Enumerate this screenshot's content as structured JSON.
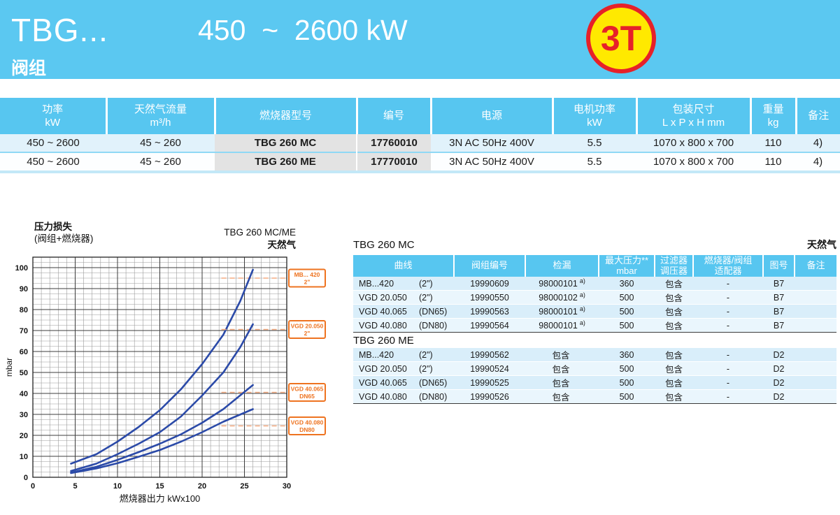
{
  "header": {
    "model": "TBG...",
    "subtitle": "阀组",
    "power_range": "450  ~  2600 kW",
    "badge": "3T"
  },
  "colors": {
    "banner_blue": "#5bc8f1",
    "table_header_blue": "#57c6f0",
    "row_blue": "#d9eefa",
    "gray_cell": "#e3e3e3",
    "badge_yellow": "#ffe900",
    "badge_red": "#e62129",
    "curve_blue": "#2b4aa8",
    "label_orange": "#ee7320"
  },
  "main_table": {
    "headers": [
      {
        "line1": "功率",
        "line2": "kW"
      },
      {
        "line1": "天然气流量",
        "line2": "m³/h"
      },
      {
        "line1": "燃烧器型号",
        "line2": ""
      },
      {
        "line1": "编号",
        "line2": ""
      },
      {
        "line1": "电源",
        "line2": ""
      },
      {
        "line1": "电机功率",
        "line2": "kW"
      },
      {
        "line1": "包装尺寸",
        "line2": "L x P x H  mm"
      },
      {
        "line1": "重量",
        "line2": "kg"
      },
      {
        "line1": "备注",
        "line2": ""
      }
    ],
    "rows": [
      [
        "450 ~ 2600",
        "45 ~ 260",
        "TBG 260 MC",
        "17760010",
        "3N AC 50Hz 400V",
        "5.5",
        "1070 x 800 x 700",
        "110",
        "4)"
      ],
      [
        "450 ~ 2600",
        "45 ~ 260",
        "TBG 260 ME",
        "17770010",
        "3N AC 50Hz 400V",
        "5.5",
        "1070 x 800 x 700",
        "110",
        "4)"
      ]
    ]
  },
  "chart_data": {
    "type": "line",
    "title_left_1": "压力损失",
    "title_left_2": "(阀组+燃烧器)",
    "title_right_1": "TBG 260 MC/ME",
    "title_right_2": "天然气",
    "xlabel": "燃烧器出力 kWx100",
    "ylabel": "mbar",
    "xlim": [
      0,
      30
    ],
    "ylim": [
      0,
      105
    ],
    "x_major_ticks": [
      0,
      5,
      10,
      15,
      20,
      25,
      30
    ],
    "y_major_ticks": [
      0,
      10,
      20,
      30,
      40,
      50,
      60,
      70,
      80,
      90,
      100
    ],
    "x_minor_step": 1,
    "y_minor_step": 2.5,
    "x_major_step": 5,
    "y_major_step": 10,
    "grid": true,
    "legend_position": "right-boxes",
    "series": [
      {
        "name": "MB... 420",
        "size": "2\"",
        "label_y": 95,
        "points": [
          [
            4.5,
            6.5
          ],
          [
            7.5,
            11
          ],
          [
            10,
            17
          ],
          [
            12.5,
            24
          ],
          [
            15,
            32
          ],
          [
            17.5,
            42
          ],
          [
            20,
            54
          ],
          [
            22.5,
            68
          ],
          [
            24.5,
            84
          ],
          [
            26,
            99
          ]
        ]
      },
      {
        "name": "VGD 20.050",
        "size": "2\"",
        "label_y": 70.5,
        "points": [
          [
            4.5,
            3
          ],
          [
            7.5,
            6.5
          ],
          [
            10,
            11
          ],
          [
            12.5,
            16
          ],
          [
            15,
            21.5
          ],
          [
            17.5,
            29
          ],
          [
            20,
            39
          ],
          [
            22.5,
            50
          ],
          [
            24.5,
            62
          ],
          [
            26,
            73
          ]
        ]
      },
      {
        "name": "VGD 40.065",
        "size": "DN65",
        "label_y": 40.5,
        "points": [
          [
            4.5,
            2.2
          ],
          [
            7.5,
            5
          ],
          [
            10,
            8.3
          ],
          [
            12.5,
            12
          ],
          [
            15,
            16
          ],
          [
            17.5,
            20.5
          ],
          [
            20,
            26
          ],
          [
            22.5,
            32.5
          ],
          [
            26,
            44
          ]
        ]
      },
      {
        "name": "VGD 40.080",
        "size": "DN80",
        "label_y": 24.5,
        "points": [
          [
            4.5,
            2
          ],
          [
            7.5,
            4.2
          ],
          [
            10,
            6.7
          ],
          [
            12.5,
            9.8
          ],
          [
            15,
            13
          ],
          [
            17.5,
            17
          ],
          [
            20,
            21.5
          ],
          [
            22.5,
            26.5
          ],
          [
            26,
            32.5
          ]
        ]
      }
    ]
  },
  "valve_table": {
    "title_mc": "TBG 260 MC",
    "gas_label": "天然气",
    "title_me": "TBG 260 ME",
    "headers": [
      {
        "line1": "曲线",
        "line2": ""
      },
      {
        "line1": "阀组编号",
        "line2": ""
      },
      {
        "line1": "检漏",
        "line2": ""
      },
      {
        "line1": "最大压力**",
        "line2": "mbar"
      },
      {
        "line1": "过滤器",
        "line2": "调压器"
      },
      {
        "line1": "燃烧器/阀组",
        "line2": "适配器"
      },
      {
        "line1": "图号",
        "line2": ""
      },
      {
        "line1": "备注",
        "line2": ""
      }
    ],
    "mc_rows": [
      {
        "curve": "MB...420",
        "size": "(2\")",
        "part": "19990609",
        "leak": "98000101",
        "leak_note": "a)",
        "pressure": "360",
        "filter": "包含",
        "adapter": "-",
        "figure": "B7",
        "remark": ""
      },
      {
        "curve": "VGD 20.050",
        "size": "(2\")",
        "part": "19990550",
        "leak": "98000102",
        "leak_note": "a)",
        "pressure": "500",
        "filter": "包含",
        "adapter": "-",
        "figure": "B7",
        "remark": ""
      },
      {
        "curve": "VGD 40.065",
        "size": "(DN65)",
        "part": "19990563",
        "leak": "98000101",
        "leak_note": "a)",
        "pressure": "500",
        "filter": "包含",
        "adapter": "-",
        "figure": "B7",
        "remark": ""
      },
      {
        "curve": "VGD 40.080",
        "size": "(DN80)",
        "part": "19990564",
        "leak": "98000101",
        "leak_note": "a)",
        "pressure": "500",
        "filter": "包含",
        "adapter": "-",
        "figure": "B7",
        "remark": ""
      }
    ],
    "me_rows": [
      {
        "curve": "MB...420",
        "size": "(2\")",
        "part": "19990562",
        "leak": "包含",
        "leak_note": "",
        "pressure": "360",
        "filter": "包含",
        "adapter": "-",
        "figure": "D2",
        "remark": ""
      },
      {
        "curve": "VGD 20.050",
        "size": "(2\")",
        "part": "19990524",
        "leak": "包含",
        "leak_note": "",
        "pressure": "500",
        "filter": "包含",
        "adapter": "-",
        "figure": "D2",
        "remark": ""
      },
      {
        "curve": "VGD 40.065",
        "size": "(DN65)",
        "part": "19990525",
        "leak": "包含",
        "leak_note": "",
        "pressure": "500",
        "filter": "包含",
        "adapter": "-",
        "figure": "D2",
        "remark": ""
      },
      {
        "curve": "VGD 40.080",
        "size": "(DN80)",
        "part": "19990526",
        "leak": "包含",
        "leak_note": "",
        "pressure": "500",
        "filter": "包含",
        "adapter": "-",
        "figure": "D2",
        "remark": ""
      }
    ]
  }
}
